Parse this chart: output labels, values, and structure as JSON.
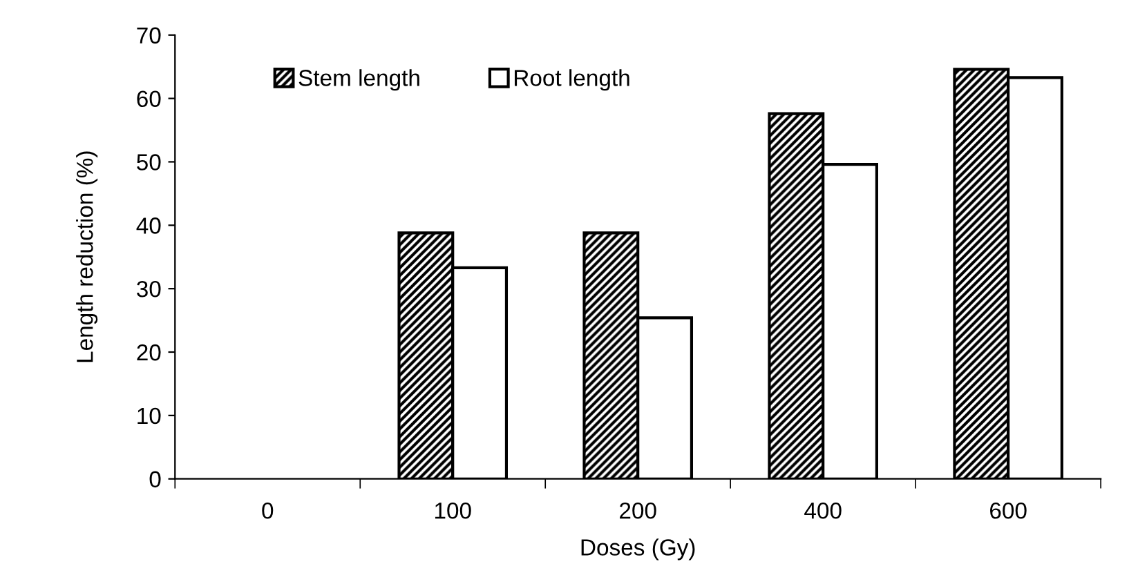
{
  "chart_data": {
    "type": "bar",
    "xlabel": "Doses (Gy)",
    "ylabel": "Length reduction (%)",
    "categories": [
      "0",
      "100",
      "200",
      "400",
      "600"
    ],
    "series": [
      {
        "name": "Stem length",
        "color": "#000000",
        "values": [
          0,
          38.8,
          38.8,
          57.6,
          64.6
        ]
      },
      {
        "name": "Root length",
        "color": "#ffffff",
        "values": [
          0,
          33.3,
          25.4,
          49.6,
          63.3
        ]
      }
    ],
    "ylim": [
      0,
      70
    ],
    "yticks": [
      0,
      10,
      20,
      30,
      40,
      50,
      60,
      70
    ],
    "grid": false,
    "legend": "top"
  }
}
